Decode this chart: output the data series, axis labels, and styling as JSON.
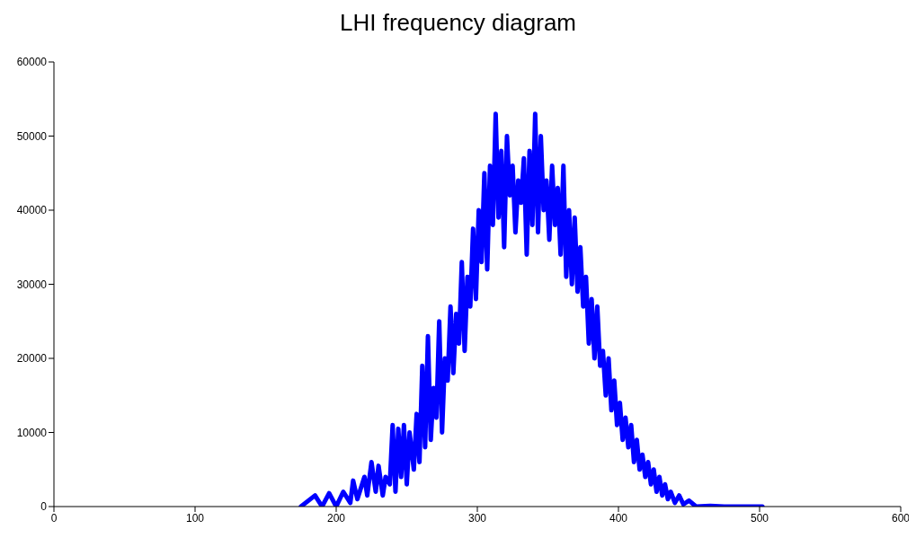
{
  "chart_data": {
    "type": "line",
    "title": "LHI frequency diagram",
    "x": [
      175,
      185,
      190,
      195,
      200,
      205,
      210,
      212,
      215,
      220,
      222,
      225,
      228,
      230,
      233,
      235,
      238,
      240,
      242,
      244,
      246,
      248,
      250,
      252,
      255,
      257,
      259,
      261,
      263,
      265,
      267,
      269,
      271,
      273,
      275,
      277,
      279,
      281,
      283,
      285,
      287,
      289,
      291,
      293,
      295,
      297,
      299,
      301,
      303,
      305,
      307,
      309,
      311,
      313,
      315,
      317,
      319,
      321,
      323,
      325,
      327,
      329,
      331,
      333,
      335,
      337,
      339,
      341,
      343,
      345,
      347,
      349,
      351,
      353,
      355,
      357,
      359,
      361,
      363,
      365,
      367,
      369,
      371,
      373,
      375,
      377,
      379,
      381,
      383,
      385,
      387,
      389,
      391,
      393,
      395,
      397,
      399,
      401,
      403,
      405,
      407,
      409,
      411,
      413,
      415,
      417,
      419,
      421,
      423,
      425,
      427,
      429,
      431,
      433,
      435,
      437,
      440,
      443,
      446,
      450,
      455,
      465,
      475,
      502
    ],
    "series": [
      {
        "color": "#0000ff",
        "values": [
          0,
          1500,
          0,
          1800,
          0,
          2000,
          500,
          3500,
          1000,
          4000,
          1500,
          6000,
          2000,
          5500,
          1500,
          4000,
          3000,
          11000,
          2000,
          10500,
          4000,
          11000,
          3000,
          10000,
          5000,
          12500,
          6000,
          19000,
          8000,
          23000,
          9000,
          16000,
          12000,
          25000,
          10000,
          20000,
          17000,
          27000,
          18000,
          26000,
          22000,
          33000,
          21000,
          31000,
          27000,
          37500,
          28000,
          40000,
          33000,
          45000,
          32000,
          46000,
          38000,
          53000,
          39000,
          48000,
          35000,
          50000,
          42000,
          46000,
          37000,
          44000,
          41000,
          47000,
          34000,
          48000,
          38000,
          53000,
          37000,
          50000,
          40000,
          44000,
          36000,
          46000,
          38000,
          43000,
          34000,
          46000,
          31000,
          40000,
          30000,
          39000,
          29000,
          35000,
          27000,
          31000,
          22000,
          28000,
          20000,
          27000,
          19000,
          21000,
          15000,
          20000,
          13000,
          17000,
          11000,
          14000,
          9000,
          12000,
          8000,
          11000,
          6000,
          9000,
          5000,
          7000,
          4000,
          6000,
          3000,
          5000,
          2000,
          4000,
          1500,
          3000,
          1000,
          2000,
          500,
          1500,
          300,
          800,
          0,
          100,
          0,
          0
        ]
      }
    ],
    "xlim": [
      0,
      600
    ],
    "xticks": [
      0,
      100,
      200,
      300,
      400,
      500,
      600
    ],
    "ylim": [
      0,
      60000
    ],
    "yticks": [
      0,
      10000,
      20000,
      30000,
      40000,
      50000,
      60000
    ],
    "grid": false,
    "marker": "none",
    "line_style": "solid"
  }
}
